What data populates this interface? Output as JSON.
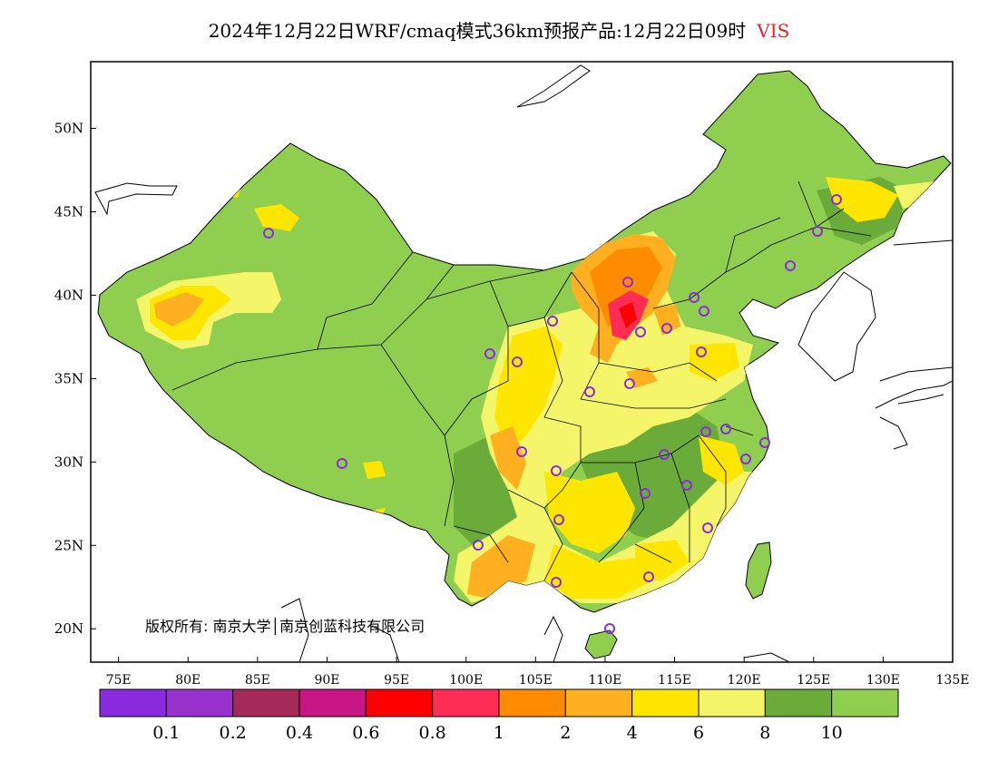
{
  "title": {
    "main": "2024年12月22日WRF/cmaq模式36km预报产品:12月22日09时",
    "variable": "VIS",
    "variable_color": "#e8202a"
  },
  "axes": {
    "lat_labels": [
      "50N",
      "45N",
      "40N",
      "35N",
      "30N",
      "25N",
      "20N"
    ],
    "lat_values": [
      50,
      45,
      40,
      35,
      30,
      25,
      20
    ],
    "lon_labels": [
      "75E",
      "80E",
      "85E",
      "90E",
      "95E",
      "100E",
      "105E",
      "110E",
      "115E",
      "120E",
      "125E",
      "130E",
      "135E"
    ],
    "lon_values": [
      75,
      80,
      85,
      90,
      95,
      100,
      105,
      110,
      115,
      120,
      125,
      130,
      135
    ],
    "lon_range": [
      73,
      135
    ],
    "lat_range": [
      18,
      54
    ]
  },
  "colorbar": {
    "colors": [
      "#8a2be2",
      "#9932cc",
      "#a52a5a",
      "#c71585",
      "#ff0000",
      "#ff2d55",
      "#ff8c00",
      "#ffb020",
      "#ffe600",
      "#f5f56a",
      "#6aab3a",
      "#8fce4f"
    ],
    "labels": [
      "0.1",
      "0.2",
      "0.4",
      "0.6",
      "0.8",
      "1",
      "2",
      "4",
      "6",
      "8",
      "10"
    ]
  },
  "copyright": "版权所有: 南京大学│南京创蓝科技有限公司"
}
